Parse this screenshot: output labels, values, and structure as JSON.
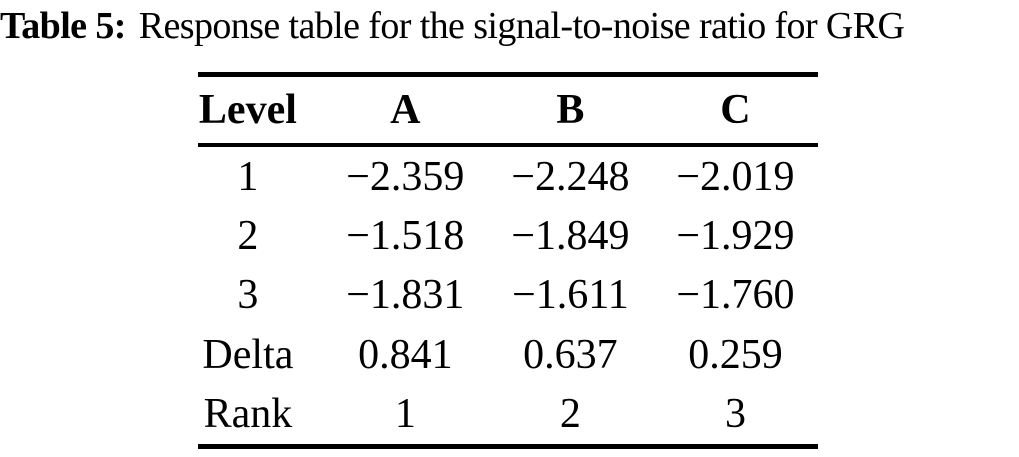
{
  "caption": {
    "label": "Table 5:",
    "text": "Response table for the signal-to-noise ratio for GRG"
  },
  "table": {
    "headers": [
      "Level",
      "A",
      "B",
      "C"
    ],
    "rows": [
      [
        "1",
        "−2.359",
        "−2.248",
        "−2.019"
      ],
      [
        "2",
        "−1.518",
        "−1.849",
        "−1.929"
      ],
      [
        "3",
        "−1.831",
        "−1.611",
        "−1.760"
      ],
      [
        "Delta",
        "0.841",
        "0.637",
        "0.259"
      ],
      [
        "Rank",
        "1",
        "2",
        "3"
      ]
    ]
  },
  "chart_data": {
    "type": "table",
    "title": "Table 5: Response table for the signal-to-noise ratio for GRG",
    "columns": [
      "Level",
      "A",
      "B",
      "C"
    ],
    "rows": [
      [
        "1",
        -2.359,
        -2.248,
        -2.019
      ],
      [
        "2",
        -1.518,
        -1.849,
        -1.929
      ],
      [
        "3",
        -1.831,
        -1.611,
        -1.76
      ],
      [
        "Delta",
        0.841,
        0.637,
        0.259
      ],
      [
        "Rank",
        1,
        2,
        3
      ]
    ]
  },
  "colors": {
    "text": "#000000",
    "background": "#ffffff",
    "rule": "#000000"
  }
}
